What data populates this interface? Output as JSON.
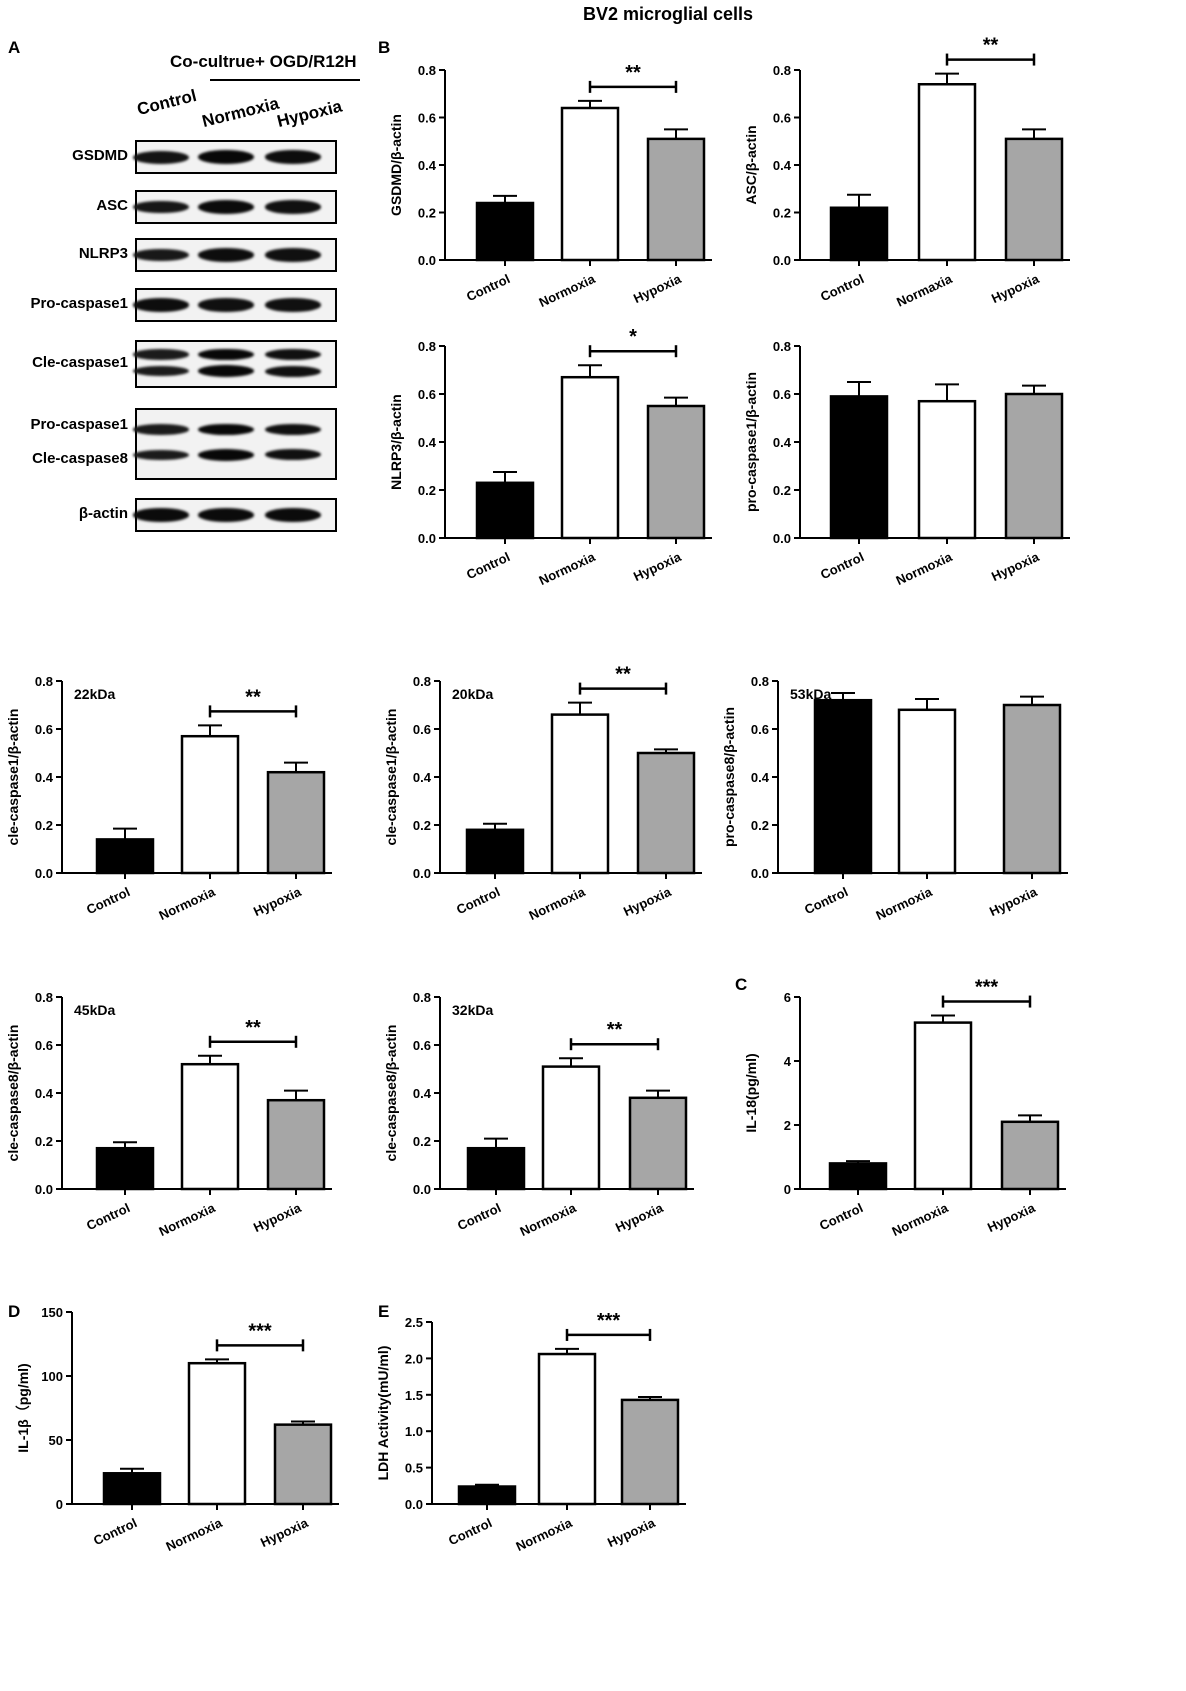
{
  "figure": {
    "title": "BV2 microglial cells",
    "panels": {
      "a": "A",
      "b": "B",
      "c": "C",
      "d": "D",
      "e": "E"
    }
  },
  "blot": {
    "header": "Co-cultrue+ OGD/R12H",
    "lanes": [
      "Control",
      "Normoxia",
      "Hypoxia"
    ],
    "rows": [
      {
        "label": "GSDMD",
        "bands": 1,
        "intensity": [
          0.75,
          0.95,
          0.85
        ]
      },
      {
        "label": "ASC",
        "bands": 1,
        "intensity": [
          0.7,
          0.9,
          0.8
        ]
      },
      {
        "label": "NLRP3",
        "bands": 1,
        "intensity": [
          0.65,
          0.85,
          0.8
        ]
      },
      {
        "label": "Pro-caspase1",
        "bands": 1,
        "intensity": [
          0.85,
          0.8,
          0.8
        ]
      },
      {
        "label": "Cle-caspase1",
        "bands": 2,
        "intensity": [
          0.6,
          0.95,
          0.8
        ]
      },
      {
        "label": "Pro-caspase1",
        "label2": "Cle-caspase8",
        "bands": 2,
        "intensity": [
          0.6,
          0.95,
          0.8
        ]
      },
      {
        "label": "β-actin",
        "bands": 1,
        "intensity": [
          0.9,
          0.9,
          0.9
        ]
      }
    ]
  },
  "colors": {
    "control": "#000000",
    "normoxia": "#ffffff",
    "hypoxia": "#a6a6a6",
    "stroke": "#000000"
  },
  "chart_data": [
    {
      "id": "gsdmd",
      "type": "bar",
      "categories": [
        "Control",
        "Normoxia",
        "Hypoxia"
      ],
      "values": [
        0.24,
        0.64,
        0.51
      ],
      "errors": [
        0.03,
        0.03,
        0.04
      ],
      "ylabel": "GSDMD/β-actin",
      "ylim": [
        0,
        0.8
      ],
      "ticks": [
        "0.0",
        "0.2",
        "0.4",
        "0.6",
        "0.8"
      ],
      "sig": "**",
      "sig_pair": [
        1,
        2
      ],
      "note": ""
    },
    {
      "id": "asc",
      "type": "bar",
      "categories": [
        "Control",
        "Normaxia",
        "Hypoxia"
      ],
      "values": [
        0.22,
        0.74,
        0.51
      ],
      "errors": [
        0.055,
        0.045,
        0.04
      ],
      "ylabel": "ASC/β-actin",
      "ylim": [
        0,
        0.8
      ],
      "ticks": [
        "0.0",
        "0.2",
        "0.4",
        "0.6",
        "0.8"
      ],
      "sig": "**",
      "sig_pair": [
        1,
        2
      ],
      "note": ""
    },
    {
      "id": "nlrp3",
      "type": "bar",
      "categories": [
        "Control",
        "Normoxia",
        "Hypoxia"
      ],
      "values": [
        0.23,
        0.67,
        0.55
      ],
      "errors": [
        0.045,
        0.05,
        0.035
      ],
      "ylabel": "NLRP3/β-actin",
      "ylim": [
        0,
        0.8
      ],
      "ticks": [
        "0.0",
        "0.2",
        "0.4",
        "0.6",
        "0.8"
      ],
      "sig": "*",
      "sig_pair": [
        1,
        2
      ],
      "note": ""
    },
    {
      "id": "procasp1",
      "type": "bar",
      "categories": [
        "Control",
        "Normoxia",
        "Hypoxia"
      ],
      "values": [
        0.59,
        0.57,
        0.6
      ],
      "errors": [
        0.06,
        0.07,
        0.035
      ],
      "ylabel": "pro-caspase1/β-actin",
      "ylim": [
        0,
        0.8
      ],
      "ticks": [
        "0.0",
        "0.2",
        "0.4",
        "0.6",
        "0.8"
      ],
      "sig": "",
      "sig_pair": [],
      "note": ""
    },
    {
      "id": "clecasp1-22",
      "type": "bar",
      "categories": [
        "Control",
        "Normoxia",
        "Hypoxia"
      ],
      "values": [
        0.14,
        0.57,
        0.42
      ],
      "errors": [
        0.045,
        0.045,
        0.04
      ],
      "ylabel": "cle-caspase1/β-actin",
      "ylim": [
        0,
        0.8
      ],
      "ticks": [
        "0.0",
        "0.2",
        "0.4",
        "0.6",
        "0.8"
      ],
      "sig": "**",
      "sig_pair": [
        1,
        2
      ],
      "note": "22kDa"
    },
    {
      "id": "clecasp1-20",
      "type": "bar",
      "categories": [
        "Control",
        "Normoxia",
        "Hypoxia"
      ],
      "values": [
        0.18,
        0.66,
        0.5
      ],
      "errors": [
        0.025,
        0.05,
        0.015
      ],
      "ylabel": "cle-caspase1/β-actin",
      "ylim": [
        0,
        0.8
      ],
      "ticks": [
        "0.0",
        "0.2",
        "0.4",
        "0.6",
        "0.8"
      ],
      "sig": "**",
      "sig_pair": [
        1,
        2
      ],
      "note": "20kDa"
    },
    {
      "id": "procasp8-53",
      "type": "bar",
      "categories": [
        "Control",
        "Normoxia",
        "Hypoxia"
      ],
      "values": [
        0.72,
        0.68,
        0.7
      ],
      "errors": [
        0.03,
        0.045,
        0.035
      ],
      "ylabel": "pro-caspase8/β-actin",
      "ylim": [
        0,
        0.8
      ],
      "ticks": [
        "0.0",
        "0.2",
        "0.4",
        "0.6",
        "0.8"
      ],
      "sig": "",
      "sig_pair": [],
      "note": "53kDa"
    },
    {
      "id": "clecasp8-45",
      "type": "bar",
      "categories": [
        "Control",
        "Normoxia",
        "Hypoxia"
      ],
      "values": [
        0.17,
        0.52,
        0.37
      ],
      "errors": [
        0.025,
        0.035,
        0.04
      ],
      "ylabel": "cle-caspase8/β-actin",
      "ylim": [
        0,
        0.8
      ],
      "ticks": [
        "0.0",
        "0.2",
        "0.4",
        "0.6",
        "0.8"
      ],
      "sig": "**",
      "sig_pair": [
        1,
        2
      ],
      "note": "45kDa"
    },
    {
      "id": "clecasp8-32",
      "type": "bar",
      "categories": [
        "Control",
        "Normoxia",
        "Hypoxia"
      ],
      "values": [
        0.17,
        0.51,
        0.38
      ],
      "errors": [
        0.04,
        0.035,
        0.03
      ],
      "ylabel": "cle-caspase8/β-actin",
      "ylim": [
        0,
        0.8
      ],
      "ticks": [
        "0.0",
        "0.2",
        "0.4",
        "0.6",
        "0.8"
      ],
      "sig": "**",
      "sig_pair": [
        1,
        2
      ],
      "note": "32kDa"
    },
    {
      "id": "il18",
      "type": "bar",
      "categories": [
        "Control",
        "Normoxia",
        "Hypoxia"
      ],
      "values": [
        0.8,
        5.2,
        2.1
      ],
      "errors": [
        0.07,
        0.22,
        0.2
      ],
      "ylabel": "IL-18(pg/ml)",
      "ylim": [
        0,
        6
      ],
      "ticks": [
        "0",
        "2",
        "4",
        "6"
      ],
      "sig": "***",
      "sig_pair": [
        1,
        2
      ],
      "note": ""
    },
    {
      "id": "il1b",
      "type": "bar",
      "categories": [
        "Control",
        "Normoxia",
        "Hypoxia"
      ],
      "values": [
        24,
        110,
        62
      ],
      "errors": [
        3.5,
        3,
        2.5
      ],
      "ylabel": "IL-1β（pg/ml)",
      "ylim": [
        0,
        150
      ],
      "ticks": [
        "0",
        "50",
        "100",
        "150"
      ],
      "sig": "***",
      "sig_pair": [
        1,
        2
      ],
      "note": ""
    },
    {
      "id": "ldh",
      "type": "bar",
      "categories": [
        "Control",
        "Normoxia",
        "Hypoxia"
      ],
      "values": [
        0.24,
        2.06,
        1.43
      ],
      "errors": [
        0.025,
        0.07,
        0.04
      ],
      "ylabel": "LDH Activity(mU/ml)",
      "ylim": [
        0,
        2.5
      ],
      "ticks": [
        "0.0",
        "0.5",
        "1.0",
        "1.5",
        "2.0",
        "2.5"
      ],
      "sig": "***",
      "sig_pair": [
        1,
        2
      ],
      "note": ""
    }
  ]
}
